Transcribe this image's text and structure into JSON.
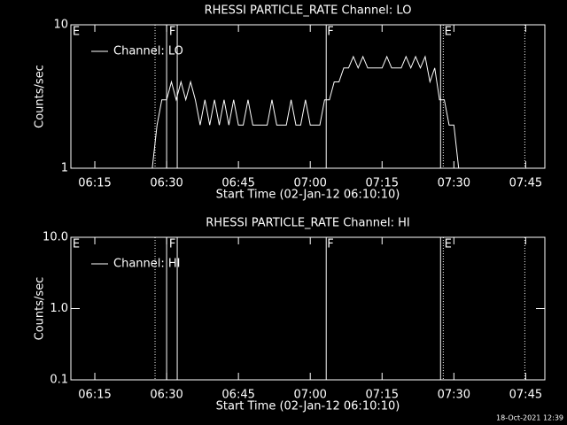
{
  "timestamp": "18-Oct-2021 12:39",
  "chart_data": [
    {
      "type": "line",
      "title": "RHESSI PARTICLE_RATE Channel: LO",
      "xlabel": "Start Time (02-Jan-12 06:10:10)",
      "ylabel": "Counts/sec",
      "x": [
        "06:27",
        "06:28",
        "06:29",
        "06:30",
        "06:31",
        "06:32",
        "06:33",
        "06:34",
        "06:35",
        "06:36",
        "06:37",
        "06:38",
        "06:39",
        "06:40",
        "06:41",
        "06:42",
        "06:43",
        "06:44",
        "06:45",
        "06:46",
        "06:47",
        "06:48",
        "06:49",
        "06:50",
        "06:51",
        "06:52",
        "06:53",
        "06:54",
        "06:55",
        "06:56",
        "06:57",
        "06:58",
        "06:59",
        "07:00",
        "07:01",
        "07:02",
        "07:03",
        "07:04",
        "07:05",
        "07:06",
        "07:07",
        "07:08",
        "07:09",
        "07:10",
        "07:11",
        "07:12",
        "07:13",
        "07:14",
        "07:15",
        "07:16",
        "07:17",
        "07:18",
        "07:19",
        "07:20",
        "07:21",
        "07:22",
        "07:23",
        "07:24",
        "07:25",
        "07:26",
        "07:27",
        "07:28",
        "07:29",
        "07:30",
        "07:31"
      ],
      "series": [
        {
          "name": "Channel: LO",
          "color": "#ffffff",
          "values": [
            1,
            2,
            3,
            3,
            4,
            3,
            4,
            3,
            4,
            3,
            2,
            3,
            2,
            3,
            2,
            3,
            2,
            3,
            2,
            2,
            3,
            2,
            2,
            2,
            2,
            3,
            2,
            2,
            2,
            3,
            2,
            2,
            3,
            2,
            2,
            2,
            3,
            3,
            4,
            4,
            5,
            5,
            6,
            5,
            6,
            5,
            5,
            5,
            5,
            6,
            5,
            5,
            5,
            6,
            5,
            6,
            5,
            6,
            4,
            5,
            3,
            3,
            2,
            2,
            1
          ]
        }
      ],
      "xlim": [
        "06:10",
        "07:49"
      ],
      "xticks": [
        "06:15",
        "06:30",
        "06:45",
        "07:00",
        "07:15",
        "07:30",
        "07:45"
      ],
      "ylim": [
        1,
        10
      ],
      "yticks": [
        10,
        1
      ],
      "log_y": true,
      "legend": "upper left",
      "markers": [
        {
          "x": "06:27:35",
          "style": "dotted"
        },
        {
          "x": "06:30:00",
          "style": "solid"
        },
        {
          "x": "06:32:13",
          "style": "solid"
        },
        {
          "x": "07:03:20",
          "style": "solid"
        },
        {
          "x": "07:27:13",
          "style": "solid"
        },
        {
          "x": "07:27:47",
          "style": "dotted"
        },
        {
          "x": "07:44:49",
          "style": "dotted"
        }
      ],
      "flags": [
        {
          "x": "06:10:10",
          "label": "E"
        },
        {
          "x": "06:30:20",
          "label": "F"
        },
        {
          "x": "07:03:20",
          "label": "F"
        },
        {
          "x": "07:27:50",
          "label": "E"
        }
      ]
    },
    {
      "type": "line",
      "title": "RHESSI PARTICLE_RATE Channel: HI",
      "xlabel": "Start Time (02-Jan-12 06:10:10)",
      "ylabel": "Counts/sec",
      "x": [],
      "series": [
        {
          "name": "Channel: HI",
          "color": "#ffffff",
          "values": []
        }
      ],
      "xlim": [
        "06:10",
        "07:49"
      ],
      "xticks": [
        "06:15",
        "06:30",
        "06:45",
        "07:00",
        "07:15",
        "07:30",
        "07:45"
      ],
      "ylim": [
        0.1,
        10
      ],
      "yticks": [
        {
          "value": 10,
          "label": "10.0"
        },
        {
          "value": 1,
          "label": "1.0"
        },
        {
          "value": 0.1,
          "label": "0.1"
        }
      ],
      "log_y": true,
      "legend": "upper left",
      "markers": [
        {
          "x": "06:27:35",
          "style": "dotted"
        },
        {
          "x": "06:30:00",
          "style": "solid"
        },
        {
          "x": "06:32:13",
          "style": "solid"
        },
        {
          "x": "07:03:20",
          "style": "solid"
        },
        {
          "x": "07:27:13",
          "style": "solid"
        },
        {
          "x": "07:27:47",
          "style": "dotted"
        },
        {
          "x": "07:44:49",
          "style": "dotted"
        }
      ],
      "flags": [
        {
          "x": "06:10:10",
          "label": "E"
        },
        {
          "x": "06:30:20",
          "label": "F"
        },
        {
          "x": "07:03:20",
          "label": "F"
        },
        {
          "x": "07:27:50",
          "label": "E"
        }
      ]
    }
  ]
}
